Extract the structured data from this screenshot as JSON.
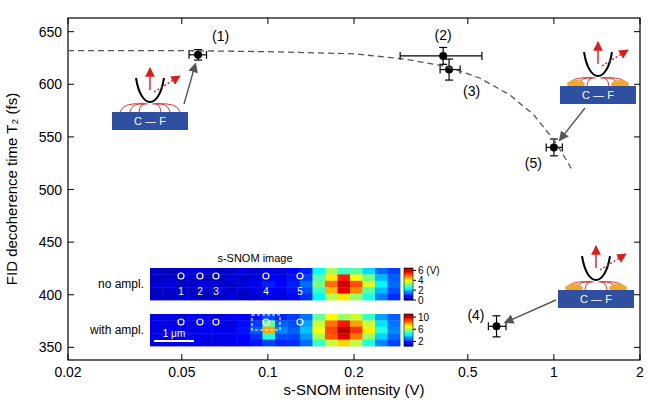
{
  "chart_data": {
    "type": "scatter",
    "x_label": "s-SNOM intensity (V)",
    "y_label": "FID decoherence time T₂ (fs)",
    "log": "x",
    "grid": false,
    "xlim": [
      0.02,
      2
    ],
    "xticks": [
      0.02,
      0.05,
      0.1,
      0.2,
      0.5,
      1,
      2
    ],
    "ylim": [
      338,
      663
    ],
    "yticks": [
      350,
      400,
      450,
      500,
      550,
      600,
      650
    ],
    "series": [
      {
        "type": "scatter",
        "marker": "circle",
        "color": "#000000",
        "x": [
          0.057,
          0.41,
          0.43,
          0.63,
          1.0
        ],
        "values": [
          628,
          627,
          614,
          370,
          540
        ],
        "yerr": [
          5,
          8,
          10,
          10,
          8
        ],
        "xerr_minus": [
          0.004,
          0.12,
          0.03,
          0.04,
          0.06
        ],
        "xerr_plus": [
          0.004,
          0.15,
          0.04,
          0.05,
          0.07
        ],
        "point_labels": [
          "(1)",
          "(2)",
          "(3)",
          "(4)",
          "(5)"
        ]
      },
      {
        "type": "line",
        "line_style": "dashed",
        "color": "#555555",
        "x": [
          0.02,
          0.05,
          0.1,
          0.2,
          0.3,
          0.42,
          0.55,
          0.7,
          0.85,
          1.0,
          1.1,
          1.15
        ],
        "values": [
          632,
          632,
          631,
          629,
          624,
          617,
          606,
          590,
          571,
          547,
          529,
          520
        ]
      }
    ],
    "schematics": [
      "C — F",
      "C — F",
      "C — F"
    ],
    "inset": {
      "title": "s-SNOM image",
      "scale_bar": "1 μm",
      "marker_labels": [
        "1",
        "2",
        "3",
        "4",
        "5"
      ],
      "panels": [
        {
          "label": "no ampl.",
          "colorbar_range": [
            0,
            6.5
          ],
          "colorbar_ticks": [
            0,
            2,
            4,
            {
              "value": 6,
              "label": "6 (V)"
            }
          ],
          "cells": [
            [
              0.5,
              0.4,
              0.5,
              0.6,
              0.5,
              0.4,
              0.5,
              0.6,
              0.5,
              0.7,
              0.6,
              0.8,
              1.0,
              2.5,
              3.5,
              2.8,
              3.0,
              2.2,
              1.5,
              1.2
            ],
            [
              0.4,
              0.5,
              0.6,
              0.5,
              0.4,
              0.5,
              0.6,
              0.5,
              0.6,
              0.8,
              0.7,
              0.9,
              1.2,
              3.0,
              4.2,
              5.5,
              4.0,
              3.2,
              2.0,
              1.4
            ],
            [
              0.5,
              0.6,
              0.4,
              0.5,
              0.6,
              0.5,
              0.4,
              0.6,
              0.7,
              1.0,
              0.8,
              1.0,
              1.5,
              3.2,
              5.0,
              6.0,
              5.2,
              3.8,
              2.4,
              1.5
            ],
            [
              0.4,
              0.5,
              0.5,
              0.4,
              0.5,
              0.6,
              0.5,
              0.5,
              0.6,
              0.8,
              0.7,
              0.9,
              1.3,
              2.8,
              4.5,
              5.8,
              4.8,
              3.0,
              2.0,
              1.3
            ],
            [
              0.5,
              0.4,
              0.6,
              0.5,
              0.4,
              0.5,
              0.6,
              0.4,
              0.5,
              0.7,
              0.6,
              0.8,
              1.1,
              2.4,
              3.6,
              4.2,
              3.4,
              2.6,
              1.6,
              1.1
            ]
          ]
        },
        {
          "label": "with ampl.",
          "colorbar_range": [
            0.5,
            11
          ],
          "colorbar_ticks": [
            2,
            6,
            10
          ],
          "cells": [
            [
              1.5,
              1.6,
              1.5,
              1.7,
              1.6,
              1.5,
              1.7,
              1.8,
              2.0,
              2.6,
              2.2,
              2.4,
              3.0,
              5.5,
              7.0,
              6.0,
              6.5,
              5.0,
              3.5,
              2.8
            ],
            [
              1.6,
              1.5,
              1.7,
              1.6,
              1.8,
              1.6,
              1.5,
              1.9,
              2.4,
              5.5,
              2.8,
              2.6,
              3.5,
              6.5,
              8.5,
              9.5,
              8.0,
              6.5,
              4.2,
              3.0
            ],
            [
              1.5,
              1.7,
              1.6,
              1.5,
              1.7,
              1.8,
              1.6,
              2.0,
              2.8,
              8.0,
              3.2,
              2.8,
              3.8,
              7.0,
              9.0,
              10.5,
              9.2,
              7.2,
              4.8,
              3.2
            ],
            [
              1.6,
              1.5,
              1.6,
              1.7,
              1.6,
              1.5,
              1.7,
              1.8,
              2.3,
              4.8,
              2.6,
              2.5,
              3.4,
              6.2,
              8.8,
              10.0,
              8.5,
              6.0,
              4.0,
              2.9
            ],
            [
              1.5,
              1.6,
              1.5,
              1.6,
              1.5,
              1.6,
              1.6,
              1.7,
              2.0,
              2.5,
              2.2,
              2.3,
              2.9,
              5.0,
              6.5,
              7.5,
              6.4,
              4.8,
              3.2,
              2.5
            ]
          ]
        }
      ]
    }
  }
}
